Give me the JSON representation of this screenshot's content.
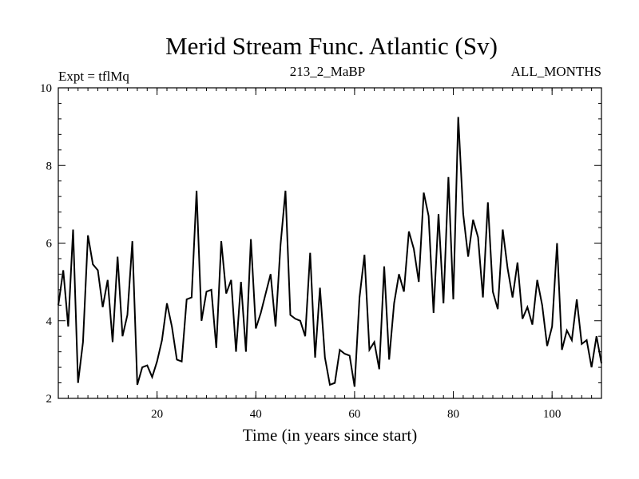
{
  "chart_data": {
    "type": "line",
    "title": "Merid Stream Func. Atlantic (Sv)",
    "annotations": {
      "left": "Expt = tflMq",
      "center": "213_2_MaBP",
      "right": "ALL_MONTHS"
    },
    "xlabel": "Time (in years since start)",
    "ylabel": "",
    "xlim": [
      0,
      110
    ],
    "ylim": [
      2,
      10
    ],
    "xticks": [
      20,
      40,
      60,
      80,
      100
    ],
    "yticks": [
      2,
      4,
      6,
      8,
      10
    ],
    "series": [
      {
        "name": "Merid Stream Func. Atlantic",
        "x": [
          0,
          1,
          2,
          3,
          4,
          5,
          6,
          7,
          8,
          9,
          10,
          11,
          12,
          13,
          14,
          15,
          16,
          17,
          18,
          19,
          20,
          21,
          22,
          23,
          24,
          25,
          26,
          27,
          28,
          29,
          30,
          31,
          32,
          33,
          34,
          35,
          36,
          37,
          38,
          39,
          40,
          41,
          42,
          43,
          44,
          45,
          46,
          47,
          48,
          49,
          50,
          51,
          52,
          53,
          54,
          55,
          56,
          57,
          58,
          59,
          60,
          61,
          62,
          63,
          64,
          65,
          66,
          67,
          68,
          69,
          70,
          71,
          72,
          73,
          74,
          75,
          76,
          77,
          78,
          79,
          80,
          81,
          82,
          83,
          84,
          85,
          86,
          87,
          88,
          89,
          90,
          91,
          92,
          93,
          94,
          95,
          96,
          97,
          98,
          99,
          100,
          101,
          102,
          103,
          104,
          105,
          106,
          107,
          108,
          109,
          110
        ],
        "y": [
          4.4,
          5.3,
          3.85,
          6.35,
          2.4,
          3.45,
          6.2,
          5.45,
          5.3,
          4.35,
          5.05,
          3.45,
          5.65,
          3.6,
          4.15,
          6.05,
          2.35,
          2.8,
          2.85,
          2.55,
          2.95,
          3.5,
          4.45,
          3.85,
          3.0,
          2.95,
          4.55,
          4.6,
          7.35,
          4.0,
          4.75,
          4.8,
          3.3,
          6.05,
          4.7,
          5.05,
          3.2,
          5.0,
          3.2,
          6.1,
          3.8,
          4.2,
          4.7,
          5.2,
          3.85,
          5.95,
          7.35,
          4.15,
          4.05,
          4.0,
          3.6,
          5.75,
          3.05,
          4.85,
          3.05,
          2.35,
          2.4,
          3.25,
          3.15,
          3.1,
          2.3,
          4.6,
          5.7,
          3.25,
          3.45,
          2.75,
          5.4,
          3.0,
          4.45,
          5.2,
          4.75,
          6.3,
          5.85,
          5.0,
          7.3,
          6.7,
          4.2,
          6.75,
          4.45,
          7.7,
          4.55,
          9.25,
          6.75,
          5.65,
          6.6,
          6.15,
          4.6,
          7.05,
          4.75,
          4.3,
          6.35,
          5.35,
          4.6,
          5.5,
          4.05,
          4.35,
          3.9,
          5.05,
          4.4,
          3.35,
          3.85,
          6.0,
          3.25,
          3.75,
          3.5,
          4.55,
          3.4,
          3.5,
          2.8,
          3.6,
          2.9
        ]
      }
    ]
  }
}
